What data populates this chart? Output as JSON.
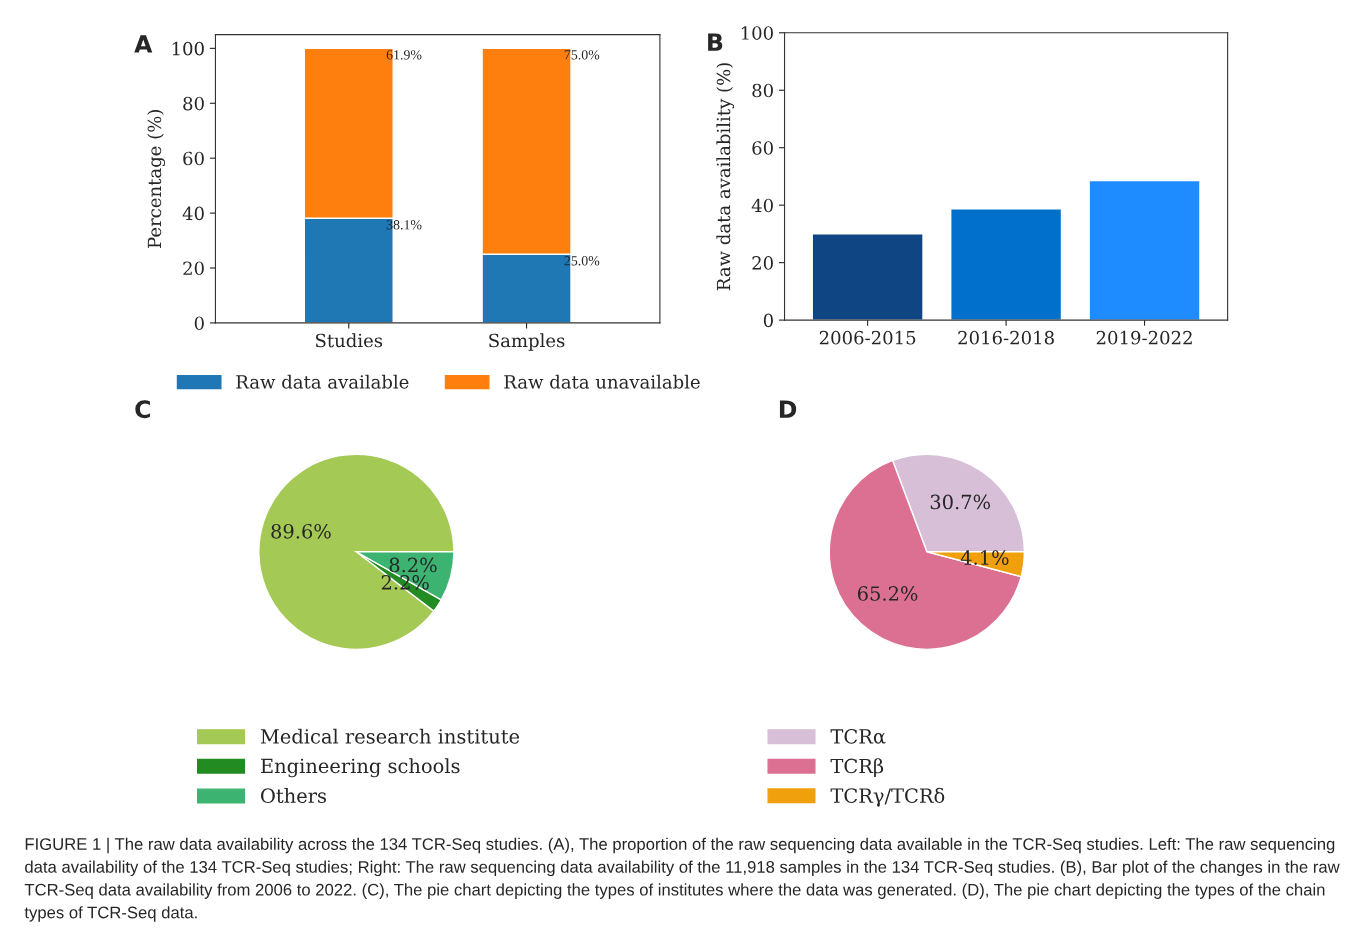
{
  "chart_data": [
    {
      "type": "bar",
      "title": "A",
      "ylabel": "Percentage (%)",
      "categories": [
        "Studies",
        "Samples"
      ],
      "stacked": true,
      "series": [
        {
          "name": "Raw data available",
          "color": "#1f77b4",
          "values": [
            38.1,
            25.0
          ],
          "value_labels": [
            "38.1%",
            "25.0%"
          ]
        },
        {
          "name": "Raw data unavailable",
          "color": "#ff7f0e",
          "values": [
            61.9,
            75.0
          ],
          "value_labels": [
            "61.9%",
            "75.0%"
          ]
        }
      ],
      "ylim": [
        0,
        105
      ],
      "yticks": [
        0,
        20,
        40,
        60,
        80,
        100
      ],
      "legend": "bottom",
      "grid": false,
      "annotations": [
        "FIGURE 1 | The raw data availability across the 134 TCR-Seq studies. (A), The proportion of the raw sequencing data available in the TCR-Seq studies. Left: The raw sequencing data availability of the 134 TCR-Seq studies; Right: The raw sequencing data availability of the 11,918 samples in the 134 TCR-Seq studies. (B), Bar plot of the changes in the raw TCR-Seq data availability from 2006 to 2022. (C), The pie chart depicting the types of institutes where the data was generated. (D), The pie chart depicting the types of the chain types of TCR-Seq data."
      ]
    },
    {
      "type": "bar",
      "title": "B",
      "ylabel": "Raw data availability (%)",
      "categories": [
        "2006-2015",
        "2016-2018",
        "2019-2022"
      ],
      "values": [
        30.0,
        38.7,
        48.6
      ],
      "colors": [
        "#0f4583",
        "#0070cc",
        "#1e8bff"
      ],
      "ylim": [
        0,
        100
      ],
      "yticks": [
        0,
        20,
        40,
        60,
        80,
        100
      ],
      "grid": false
    },
    {
      "type": "pie",
      "title": "C",
      "categories": [
        "Medical research institute",
        "Engineering schools",
        "Others"
      ],
      "values": [
        89.6,
        2.2,
        8.2
      ],
      "colors": [
        "#a5c955",
        "#228b22",
        "#3cb371"
      ],
      "value_labels": [
        "89.6%",
        "2.2%",
        "8.2%"
      ],
      "legend": "bottom"
    },
    {
      "type": "pie",
      "title": "D",
      "categories": [
        "TCRα",
        "TCRβ",
        "TCRγ/TCRδ"
      ],
      "values": [
        30.7,
        65.2,
        4.1
      ],
      "colors": [
        "#d8bfd8",
        "#db7093",
        "#f0a00c"
      ],
      "value_labels": [
        "30.7%",
        "65.2%",
        "4.1%"
      ],
      "legend": "bottom"
    }
  ]
}
